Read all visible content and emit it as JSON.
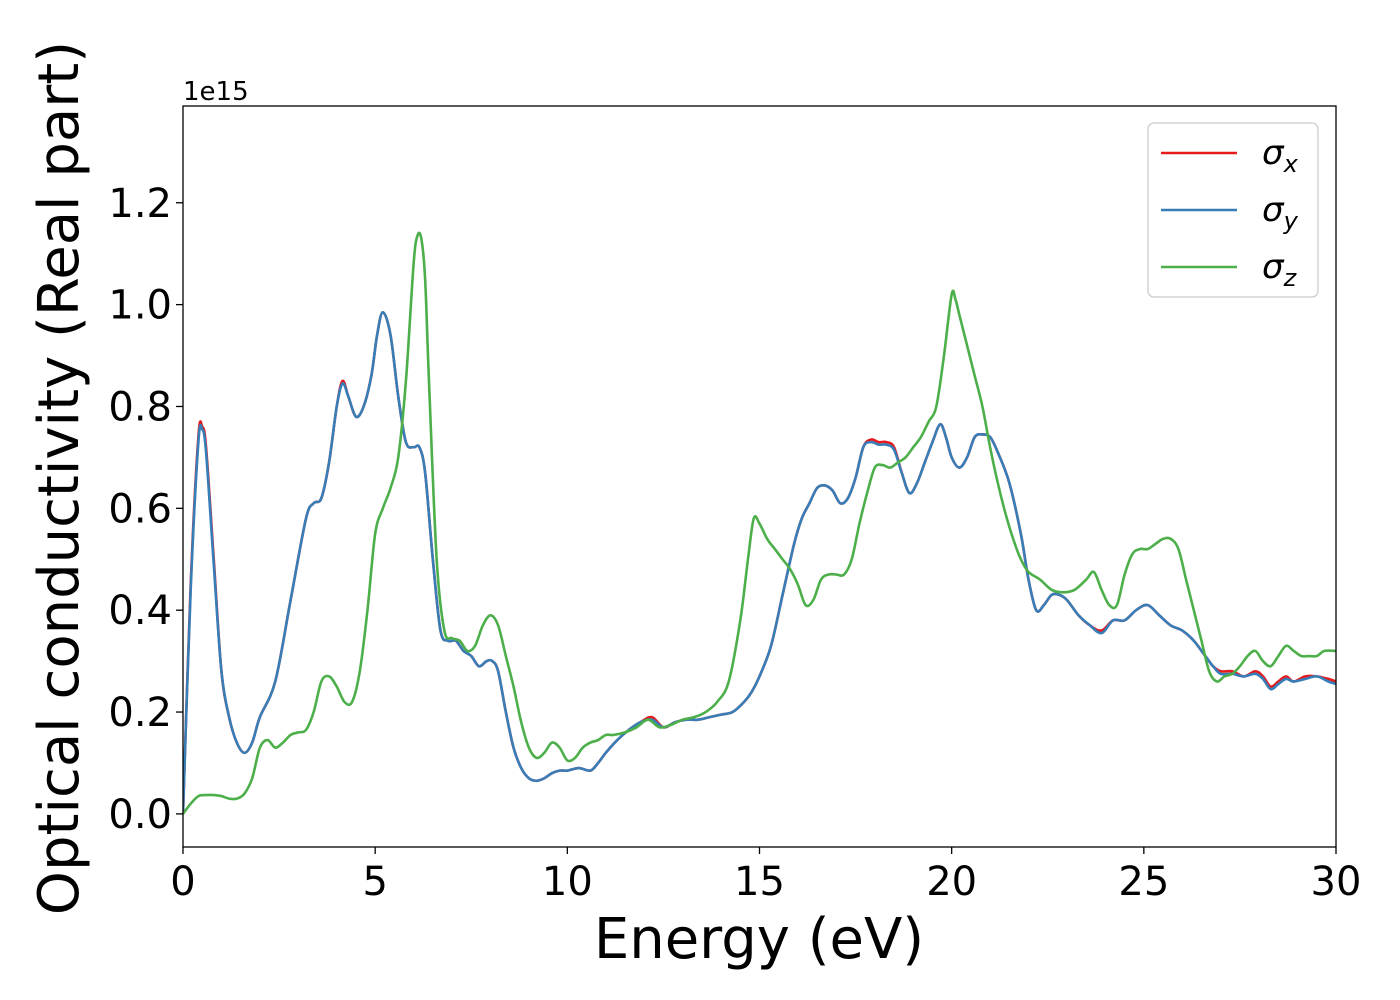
{
  "chart_data": {
    "type": "line",
    "xlabel": "Energy (eV)",
    "ylabel": "Optical conductivity (Real part)",
    "offset_text": "1e15",
    "xlim": [
      0,
      30
    ],
    "ylim": [
      -0.065,
      1.39
    ],
    "x_ticks": [
      0,
      5,
      10,
      15,
      20,
      25,
      30
    ],
    "x_tick_labels": [
      "0",
      "5",
      "10",
      "15",
      "20",
      "25",
      "30"
    ],
    "y_ticks": [
      0.0,
      0.2,
      0.4,
      0.6,
      0.8,
      1.0,
      1.2
    ],
    "y_tick_labels": [
      "0.0",
      "0.2",
      "0.4",
      "0.6",
      "0.8",
      "1.0",
      "1.2"
    ],
    "grid": false,
    "legend_position": "top-right",
    "series": [
      {
        "name": "σx",
        "symbol": "σ",
        "subscript": "x",
        "color": "#e41a1c",
        "x": [
          0,
          0.2,
          0.4,
          0.5,
          0.6,
          0.8,
          1.0,
          1.2,
          1.4,
          1.6,
          1.8,
          2.0,
          2.4,
          2.8,
          3.2,
          3.4,
          3.6,
          3.8,
          4.0,
          4.15,
          4.3,
          4.5,
          4.7,
          4.9,
          5.05,
          5.2,
          5.4,
          5.6,
          5.8,
          6.0,
          6.15,
          6.3,
          6.5,
          6.7,
          6.9,
          7.1,
          7.3,
          7.5,
          7.7,
          7.9,
          8.05,
          8.2,
          8.4,
          8.6,
          8.8,
          9.0,
          9.2,
          9.4,
          9.6,
          9.8,
          10.0,
          10.3,
          10.6,
          10.8,
          11.0,
          11.3,
          11.6,
          11.9,
          12.2,
          12.5,
          12.8,
          13.1,
          13.4,
          13.7,
          14.0,
          14.3,
          14.6,
          14.8,
          15.0,
          15.3,
          15.6,
          15.9,
          16.1,
          16.3,
          16.5,
          16.7,
          16.9,
          17.1,
          17.3,
          17.5,
          17.7,
          17.9,
          18.1,
          18.3,
          18.5,
          18.7,
          18.9,
          19.1,
          19.3,
          19.5,
          19.7,
          19.85,
          20.0,
          20.2,
          20.4,
          20.6,
          20.8,
          21.0,
          21.2,
          21.5,
          21.8,
          22.0,
          22.2,
          22.4,
          22.6,
          22.8,
          23.0,
          23.3,
          23.6,
          23.9,
          24.2,
          24.5,
          24.8,
          25.1,
          25.4,
          25.7,
          26.0,
          26.3,
          26.6,
          26.8,
          27.0,
          27.3,
          27.6,
          27.9,
          28.1,
          28.3,
          28.5,
          28.7,
          28.9,
          29.2,
          29.5,
          29.8,
          30.0
        ],
        "y": [
          0.0,
          0.45,
          0.74,
          0.76,
          0.72,
          0.5,
          0.28,
          0.19,
          0.14,
          0.12,
          0.14,
          0.19,
          0.26,
          0.42,
          0.58,
          0.61,
          0.62,
          0.69,
          0.8,
          0.85,
          0.82,
          0.78,
          0.8,
          0.86,
          0.94,
          0.985,
          0.94,
          0.82,
          0.73,
          0.72,
          0.72,
          0.67,
          0.5,
          0.36,
          0.34,
          0.34,
          0.32,
          0.31,
          0.29,
          0.3,
          0.3,
          0.28,
          0.2,
          0.13,
          0.09,
          0.07,
          0.065,
          0.07,
          0.08,
          0.085,
          0.085,
          0.09,
          0.085,
          0.1,
          0.12,
          0.145,
          0.165,
          0.18,
          0.19,
          0.17,
          0.18,
          0.185,
          0.185,
          0.19,
          0.195,
          0.2,
          0.22,
          0.24,
          0.27,
          0.33,
          0.43,
          0.53,
          0.58,
          0.61,
          0.64,
          0.645,
          0.635,
          0.61,
          0.62,
          0.66,
          0.72,
          0.735,
          0.73,
          0.73,
          0.72,
          0.67,
          0.63,
          0.65,
          0.69,
          0.73,
          0.765,
          0.74,
          0.7,
          0.68,
          0.7,
          0.74,
          0.745,
          0.74,
          0.71,
          0.65,
          0.55,
          0.46,
          0.4,
          0.41,
          0.43,
          0.43,
          0.42,
          0.39,
          0.37,
          0.36,
          0.38,
          0.38,
          0.4,
          0.41,
          0.39,
          0.37,
          0.36,
          0.34,
          0.31,
          0.29,
          0.28,
          0.28,
          0.27,
          0.28,
          0.27,
          0.25,
          0.26,
          0.27,
          0.26,
          0.27,
          0.27,
          0.265,
          0.26
        ]
      },
      {
        "name": "σy",
        "symbol": "σ",
        "subscript": "y",
        "color": "#377eb8",
        "x": [
          0,
          0.2,
          0.4,
          0.5,
          0.6,
          0.8,
          1.0,
          1.2,
          1.4,
          1.6,
          1.8,
          2.0,
          2.4,
          2.8,
          3.2,
          3.4,
          3.6,
          3.8,
          4.0,
          4.15,
          4.3,
          4.5,
          4.7,
          4.9,
          5.05,
          5.2,
          5.4,
          5.6,
          5.8,
          6.0,
          6.15,
          6.3,
          6.5,
          6.7,
          6.9,
          7.1,
          7.3,
          7.5,
          7.7,
          7.9,
          8.05,
          8.2,
          8.4,
          8.6,
          8.8,
          9.0,
          9.2,
          9.4,
          9.6,
          9.8,
          10.0,
          10.3,
          10.6,
          10.8,
          11.0,
          11.3,
          11.6,
          11.9,
          12.2,
          12.5,
          12.8,
          13.1,
          13.4,
          13.7,
          14.0,
          14.3,
          14.6,
          14.8,
          15.0,
          15.3,
          15.6,
          15.9,
          16.1,
          16.3,
          16.5,
          16.7,
          16.9,
          17.1,
          17.3,
          17.5,
          17.7,
          17.9,
          18.1,
          18.3,
          18.5,
          18.7,
          18.9,
          19.1,
          19.3,
          19.5,
          19.7,
          19.85,
          20.0,
          20.2,
          20.4,
          20.6,
          20.8,
          21.0,
          21.2,
          21.5,
          21.8,
          22.0,
          22.2,
          22.4,
          22.6,
          22.8,
          23.0,
          23.3,
          23.6,
          23.9,
          24.2,
          24.5,
          24.8,
          25.1,
          25.4,
          25.7,
          26.0,
          26.3,
          26.6,
          26.8,
          27.0,
          27.3,
          27.6,
          27.9,
          28.1,
          28.3,
          28.5,
          28.7,
          28.9,
          29.2,
          29.5,
          29.8,
          30.0
        ],
        "y": [
          0.0,
          0.44,
          0.73,
          0.755,
          0.71,
          0.49,
          0.28,
          0.19,
          0.14,
          0.12,
          0.14,
          0.19,
          0.26,
          0.42,
          0.58,
          0.61,
          0.62,
          0.69,
          0.8,
          0.845,
          0.82,
          0.78,
          0.8,
          0.86,
          0.94,
          0.985,
          0.94,
          0.82,
          0.73,
          0.72,
          0.72,
          0.67,
          0.5,
          0.36,
          0.34,
          0.34,
          0.32,
          0.31,
          0.29,
          0.3,
          0.3,
          0.28,
          0.2,
          0.13,
          0.09,
          0.07,
          0.065,
          0.07,
          0.08,
          0.085,
          0.085,
          0.09,
          0.085,
          0.1,
          0.12,
          0.145,
          0.165,
          0.18,
          0.185,
          0.17,
          0.18,
          0.185,
          0.185,
          0.19,
          0.195,
          0.2,
          0.22,
          0.24,
          0.27,
          0.33,
          0.43,
          0.53,
          0.58,
          0.61,
          0.64,
          0.645,
          0.635,
          0.61,
          0.62,
          0.66,
          0.72,
          0.73,
          0.725,
          0.725,
          0.715,
          0.67,
          0.63,
          0.65,
          0.69,
          0.73,
          0.765,
          0.74,
          0.7,
          0.68,
          0.7,
          0.74,
          0.745,
          0.74,
          0.71,
          0.65,
          0.55,
          0.46,
          0.4,
          0.41,
          0.43,
          0.43,
          0.42,
          0.39,
          0.37,
          0.355,
          0.38,
          0.38,
          0.4,
          0.41,
          0.39,
          0.37,
          0.36,
          0.34,
          0.31,
          0.29,
          0.275,
          0.275,
          0.27,
          0.275,
          0.265,
          0.245,
          0.255,
          0.265,
          0.26,
          0.265,
          0.27,
          0.26,
          0.255
        ]
      },
      {
        "name": "σz",
        "symbol": "σ",
        "subscript": "z",
        "color": "#4daf4a",
        "x": [
          0,
          0.2,
          0.4,
          0.6,
          0.8,
          1.0,
          1.2,
          1.4,
          1.6,
          1.8,
          2.0,
          2.2,
          2.4,
          2.6,
          2.8,
          3.0,
          3.2,
          3.4,
          3.6,
          3.8,
          4.0,
          4.2,
          4.4,
          4.6,
          4.8,
          5.0,
          5.2,
          5.4,
          5.6,
          5.8,
          6.0,
          6.1,
          6.2,
          6.3,
          6.4,
          6.6,
          6.8,
          7.0,
          7.2,
          7.4,
          7.6,
          7.8,
          8.0,
          8.2,
          8.4,
          8.6,
          8.8,
          9.0,
          9.2,
          9.4,
          9.6,
          9.8,
          10.0,
          10.2,
          10.4,
          10.6,
          10.8,
          11.0,
          11.2,
          11.5,
          11.8,
          12.1,
          12.4,
          12.7,
          13.0,
          13.3,
          13.6,
          13.9,
          14.2,
          14.5,
          14.7,
          14.85,
          15.0,
          15.2,
          15.4,
          15.6,
          15.8,
          16.0,
          16.2,
          16.4,
          16.6,
          16.8,
          17.0,
          17.2,
          17.4,
          17.6,
          17.8,
          18.0,
          18.2,
          18.4,
          18.6,
          18.8,
          19.0,
          19.2,
          19.4,
          19.6,
          19.8,
          20.0,
          20.1,
          20.2,
          20.4,
          20.6,
          20.8,
          21.0,
          21.2,
          21.4,
          21.6,
          21.8,
          22.0,
          22.3,
          22.6,
          22.9,
          23.2,
          23.5,
          23.7,
          23.9,
          24.1,
          24.3,
          24.5,
          24.7,
          24.9,
          25.1,
          25.3,
          25.5,
          25.7,
          25.9,
          26.1,
          26.3,
          26.5,
          26.7,
          26.9,
          27.1,
          27.3,
          27.5,
          27.7,
          27.9,
          28.1,
          28.3,
          28.5,
          28.7,
          28.9,
          29.1,
          29.3,
          29.5,
          29.7,
          30.0
        ],
        "y": [
          0.0,
          0.02,
          0.035,
          0.037,
          0.037,
          0.035,
          0.03,
          0.03,
          0.04,
          0.07,
          0.13,
          0.145,
          0.13,
          0.14,
          0.155,
          0.16,
          0.165,
          0.2,
          0.26,
          0.27,
          0.25,
          0.22,
          0.22,
          0.28,
          0.4,
          0.55,
          0.6,
          0.64,
          0.7,
          0.85,
          1.08,
          1.135,
          1.13,
          1.05,
          0.85,
          0.5,
          0.36,
          0.345,
          0.34,
          0.32,
          0.33,
          0.37,
          0.39,
          0.37,
          0.31,
          0.25,
          0.18,
          0.13,
          0.11,
          0.12,
          0.14,
          0.13,
          0.105,
          0.11,
          0.13,
          0.14,
          0.145,
          0.155,
          0.155,
          0.16,
          0.17,
          0.185,
          0.17,
          0.175,
          0.185,
          0.19,
          0.2,
          0.22,
          0.26,
          0.38,
          0.5,
          0.58,
          0.57,
          0.54,
          0.52,
          0.5,
          0.48,
          0.45,
          0.41,
          0.42,
          0.46,
          0.47,
          0.47,
          0.47,
          0.5,
          0.57,
          0.63,
          0.68,
          0.685,
          0.68,
          0.69,
          0.7,
          0.72,
          0.74,
          0.77,
          0.8,
          0.9,
          1.02,
          1.01,
          0.98,
          0.92,
          0.86,
          0.8,
          0.72,
          0.65,
          0.59,
          0.54,
          0.5,
          0.475,
          0.46,
          0.44,
          0.435,
          0.44,
          0.46,
          0.475,
          0.44,
          0.41,
          0.41,
          0.47,
          0.51,
          0.52,
          0.52,
          0.53,
          0.54,
          0.54,
          0.52,
          0.46,
          0.4,
          0.34,
          0.28,
          0.26,
          0.27,
          0.275,
          0.29,
          0.31,
          0.32,
          0.3,
          0.29,
          0.31,
          0.33,
          0.32,
          0.31,
          0.31,
          0.31,
          0.32,
          0.32
        ]
      }
    ]
  }
}
